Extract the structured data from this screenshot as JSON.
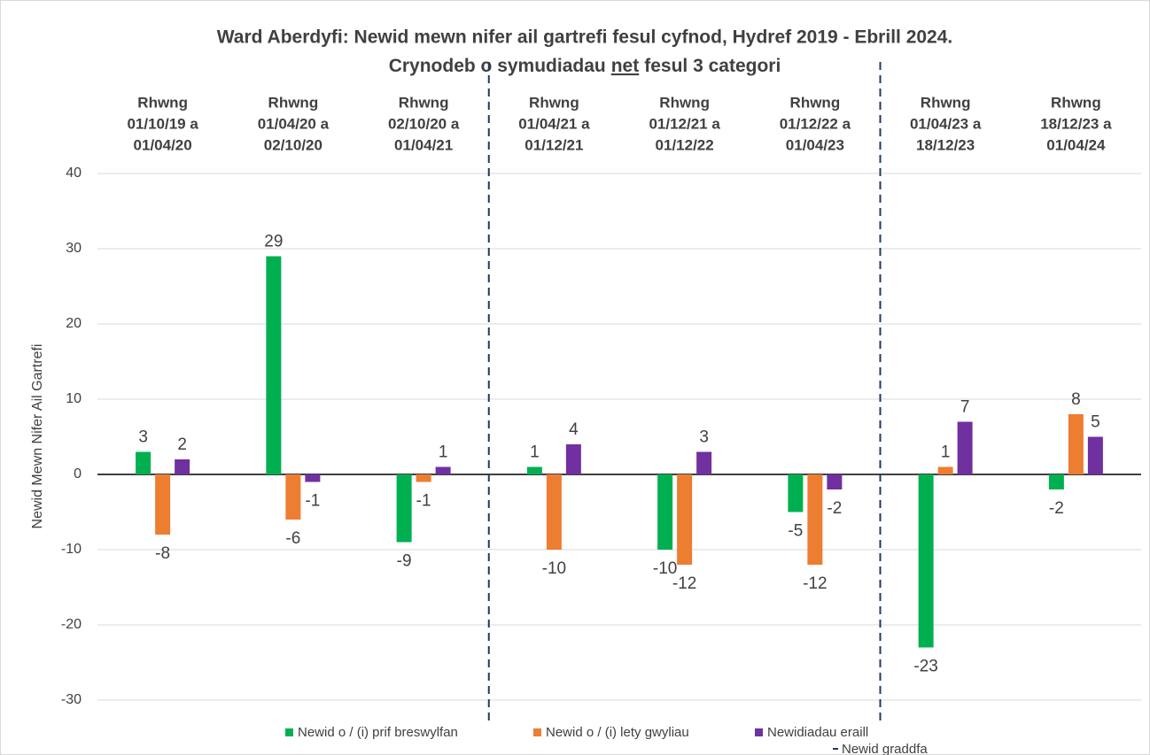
{
  "chart_data": {
    "type": "bar",
    "title": "Ward Aberdyfi: Newid mewn nifer ail gartrefi fesul cyfnod, Hydref 2019 - Ebrill 2024.",
    "subtitle_parts": [
      "Crynodeb o symudiadau",
      "net",
      "fesul 3 categori"
    ],
    "y_label": "Newid Mewn Nifer Ail Gartrefi",
    "categories": [
      [
        "Rhwng",
        "01/10/19 a",
        "01/04/20"
      ],
      [
        "Rhwng",
        "01/04/20 a",
        "02/10/20"
      ],
      [
        "Rhwng",
        "02/10/20 a",
        "01/04/21"
      ],
      [
        "Rhwng",
        "01/04/21 a",
        "01/12/21"
      ],
      [
        "Rhwng",
        "01/12/21 a",
        "01/12/22"
      ],
      [
        "Rhwng",
        "01/12/22 a",
        "01/04/23"
      ],
      [
        "Rhwng",
        "01/04/23 a",
        "18/12/23"
      ],
      [
        "Rhwng",
        "18/12/23 a",
        "01/04/24"
      ]
    ],
    "series": [
      {
        "name": "Newid o / (i) prif breswylfan",
        "color": "#00b050",
        "values": [
          3,
          29,
          -9,
          1,
          -10,
          -5,
          -23,
          -2
        ]
      },
      {
        "name": "Newid o / (i) lety gwyliau",
        "color": "#ed7d31",
        "values": [
          -8,
          -6,
          -1,
          -10,
          -12,
          -12,
          1,
          8
        ]
      },
      {
        "name": "Newidiadau eraill",
        "color": "#7030a0",
        "values": [
          2,
          -1,
          1,
          4,
          3,
          -2,
          7,
          5
        ]
      }
    ],
    "divider": {
      "name": "Newid graddfa",
      "color": "#203864",
      "after_categories": [
        3,
        6
      ]
    },
    "ylim": [
      -30,
      40
    ],
    "yticks": [
      -30,
      -20,
      -10,
      0,
      10,
      20,
      30,
      40
    ],
    "grid": true,
    "legend": "bottom"
  }
}
